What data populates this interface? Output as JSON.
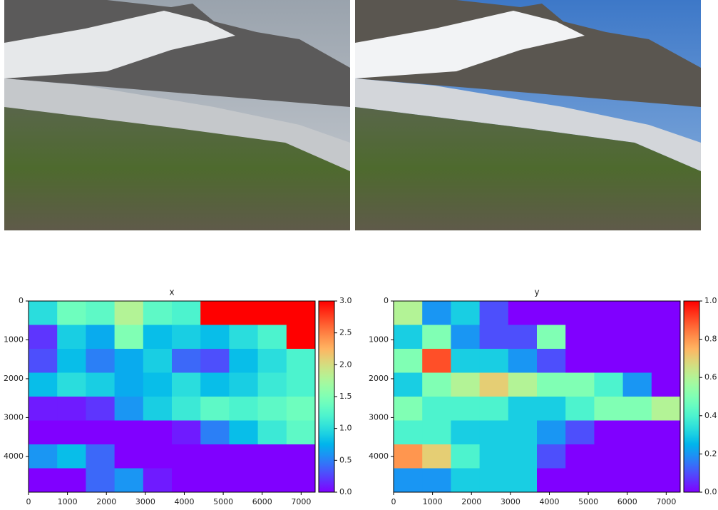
{
  "chart_data": [
    {
      "type": "heatmap",
      "title": "x",
      "cmap": "rainbow",
      "xlim": [
        0,
        7360
      ],
      "ylim": [
        4920,
        0
      ],
      "xticks": [
        0,
        1000,
        2000,
        3000,
        4000,
        5000,
        6000,
        7000
      ],
      "yticks": [
        0,
        1000,
        2000,
        3000,
        4000
      ],
      "clim": [
        0,
        3
      ],
      "cticks": [
        {
          "value": 0,
          "label": "0.0"
        },
        0.5,
        {
          "value": 1,
          "label": "1.0"
        },
        1.5,
        {
          "value": 2,
          "label": "2.0"
        },
        2.5,
        {
          "value": 3,
          "label": "3.0"
        }
      ],
      "values": [
        [
          1.0,
          1.4,
          1.3,
          1.8,
          1.3,
          1.2,
          3,
          3,
          3,
          3
        ],
        [
          0.2,
          0.9,
          0.7,
          1.5,
          0.8,
          0.9,
          0.8,
          1.0,
          1.2,
          3
        ],
        [
          0.3,
          0.8,
          0.5,
          0.7,
          0.9,
          0.4,
          0.3,
          0.8,
          1.0,
          1.2
        ],
        [
          0.8,
          1.0,
          0.9,
          0.7,
          0.8,
          1.0,
          0.8,
          0.9,
          1.1,
          1.2
        ],
        [
          0.1,
          0.1,
          0.2,
          0.6,
          0.9,
          1.1,
          1.3,
          1.2,
          1.3,
          1.4
        ],
        [
          0,
          0,
          0,
          0,
          0,
          0.1,
          0.5,
          0.8,
          1.1,
          1.3
        ],
        [
          0.6,
          0.8,
          0.4,
          0,
          0,
          0,
          0,
          0,
          0,
          0
        ],
        [
          0,
          0,
          0.4,
          0.6,
          0.1,
          0,
          0,
          0,
          0,
          0
        ]
      ]
    },
    {
      "type": "heatmap",
      "title": "y",
      "cmap": "rainbow",
      "xlim": [
        0,
        7360
      ],
      "ylim": [
        4920,
        0
      ],
      "xticks": [
        0,
        1000,
        2000,
        3000,
        4000,
        5000,
        6000,
        7000
      ],
      "yticks": [
        0,
        1000,
        2000,
        3000,
        4000
      ],
      "clim": [
        0,
        1
      ],
      "cticks": [
        {
          "value": 0,
          "label": "0.0"
        },
        0.2,
        0.4,
        0.6,
        0.8,
        {
          "value": 1,
          "label": "1.0"
        }
      ],
      "values": [
        [
          0.6,
          0.2,
          0.3,
          0.1,
          0,
          0,
          0,
          0,
          0,
          0
        ],
        [
          0.3,
          0.5,
          0.2,
          0.1,
          0.1,
          0.5,
          0,
          0,
          0,
          0
        ],
        [
          0.5,
          0.9,
          0.3,
          0.3,
          0.2,
          0.1,
          0,
          0,
          0,
          0
        ],
        [
          0.3,
          0.5,
          0.6,
          0.7,
          0.6,
          0.5,
          0.5,
          0.4,
          0.2,
          0
        ],
        [
          0.5,
          0.4,
          0.4,
          0.4,
          0.3,
          0.3,
          0.4,
          0.5,
          0.5,
          0.6
        ],
        [
          0.4,
          0.4,
          0.3,
          0.3,
          0.3,
          0.2,
          0.1,
          0,
          0,
          0
        ],
        [
          0.8,
          0.7,
          0.4,
          0.3,
          0.3,
          0.1,
          0,
          0,
          0,
          0
        ],
        [
          0.2,
          0.2,
          0.3,
          0.3,
          0.3,
          0,
          0,
          0,
          0,
          0
        ]
      ]
    }
  ]
}
